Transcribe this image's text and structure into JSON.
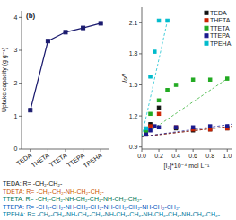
{
  "chart_data": [
    {
      "type": "line",
      "title": "(b)",
      "categories": [
        "TEDA",
        "THETA",
        "TTETA",
        "TTEPA",
        "TPEHA"
      ],
      "values": [
        1.18,
        3.28,
        3.55,
        3.68,
        3.82
      ],
      "ylabel": "Uptake capacity (g g⁻¹)",
      "ylim": [
        0,
        4.2
      ],
      "yticks": [
        0,
        1,
        2,
        3,
        4
      ],
      "color": "#1a1a6e",
      "marker": "square",
      "grid": false
    },
    {
      "type": "scatter",
      "xlabel": "[I₂]*10⁻⁴ mol L⁻¹",
      "ylabel": "I₀/I",
      "xlim": [
        0,
        1.05
      ],
      "ylim": [
        0.88,
        2.25
      ],
      "xticks": [
        {
          "value": 0.0,
          "label": "0.0"
        },
        0.2,
        0.4,
        0.6,
        0.8,
        {
          "value": 1.0,
          "label": "1.0"
        }
      ],
      "yticks": [
        0.9,
        1.2,
        1.5,
        1.8,
        2.1
      ],
      "grid": false,
      "legend": "upper right",
      "series": [
        {
          "name": "TEDA",
          "color": "#111111",
          "marker": "square",
          "x": [
            0.05,
            0.1,
            0.2,
            0.4,
            0.6,
            0.8,
            1.0
          ],
          "values": [
            1.02,
            1.12,
            1.28,
            1.08,
            1.06,
            1.07,
            1.08
          ]
        },
        {
          "name": "THETA",
          "color": "#cc2200",
          "marker": "square",
          "x": [
            0.05,
            0.1,
            0.2,
            0.4,
            0.6,
            0.8,
            1.0
          ],
          "values": [
            1.04,
            1.1,
            1.22,
            1.09,
            1.07,
            1.07,
            1.08
          ]
        },
        {
          "name": "TTETA",
          "color": "#22aa22",
          "marker": "square",
          "x": [
            0.05,
            0.1,
            0.2,
            0.3,
            0.4,
            0.6,
            0.8,
            1.0
          ],
          "values": [
            1.05,
            1.22,
            1.35,
            1.45,
            1.5,
            1.55,
            1.55,
            1.56
          ]
        },
        {
          "name": "TTEPA",
          "color": "#1a1a8e",
          "marker": "square",
          "x": [
            0.05,
            0.1,
            0.15,
            0.2,
            0.4,
            0.6,
            0.8,
            1.0
          ],
          "values": [
            1.02,
            1.06,
            1.1,
            1.09,
            1.09,
            1.09,
            1.1,
            1.1
          ]
        },
        {
          "name": "TPEHA",
          "color": "#00bbcc",
          "marker": "square",
          "x": [
            0.05,
            0.1,
            0.15,
            0.2,
            0.3
          ],
          "values": [
            1.08,
            1.58,
            1.82,
            2.12,
            2.12
          ]
        },
        {
          "type": "line",
          "line_style": "dashed",
          "color": "#111111",
          "x": [
            0.0,
            1.05
          ],
          "values": [
            1.0,
            1.1
          ]
        },
        {
          "type": "line",
          "line_style": "dashed",
          "color": "#cc2200",
          "x": [
            0.0,
            1.05
          ],
          "values": [
            1.0,
            1.1
          ]
        },
        {
          "type": "line",
          "line_style": "dashed",
          "color": "#22aa22",
          "x": [
            0.0,
            1.0
          ],
          "values": [
            1.0,
            1.56
          ]
        },
        {
          "type": "line",
          "line_style": "dashed",
          "color": "#1a1a8e",
          "x": [
            0.0,
            1.05
          ],
          "values": [
            1.0,
            1.12
          ]
        },
        {
          "type": "line",
          "line_style": "dashed",
          "color": "#00bbcc",
          "x": [
            0.0,
            0.3
          ],
          "values": [
            1.0,
            2.12
          ]
        }
      ]
    }
  ],
  "annotations": [
    {
      "text": "TEDA: R= -CH₂-CH₂-",
      "color": "#111111"
    },
    {
      "text": "TDETA: R= -CH₂-CH₂-NH-CH₂-CH₂-",
      "color": "#cc5500"
    },
    {
      "text": "TTETA: R= -CH₂-CH₂-NH-CH₂-CH₂-NH-CH₂-CH₂-",
      "color": "#007755"
    },
    {
      "text": "TTEPA: R= -CH₂-CH₂-NH-CH₂-CH₂-NH-CH₂-CH₂-NH-CH₂-CH₂-",
      "color": "#0055bb"
    },
    {
      "text": "TPEHA: R= -CH₂-CH₂-NH-CH₂-CH₂-NH-CH₂-CH₂-NH-CH₂-CH₂-NH-CH₂-CH₂-",
      "color": "#007799"
    }
  ]
}
